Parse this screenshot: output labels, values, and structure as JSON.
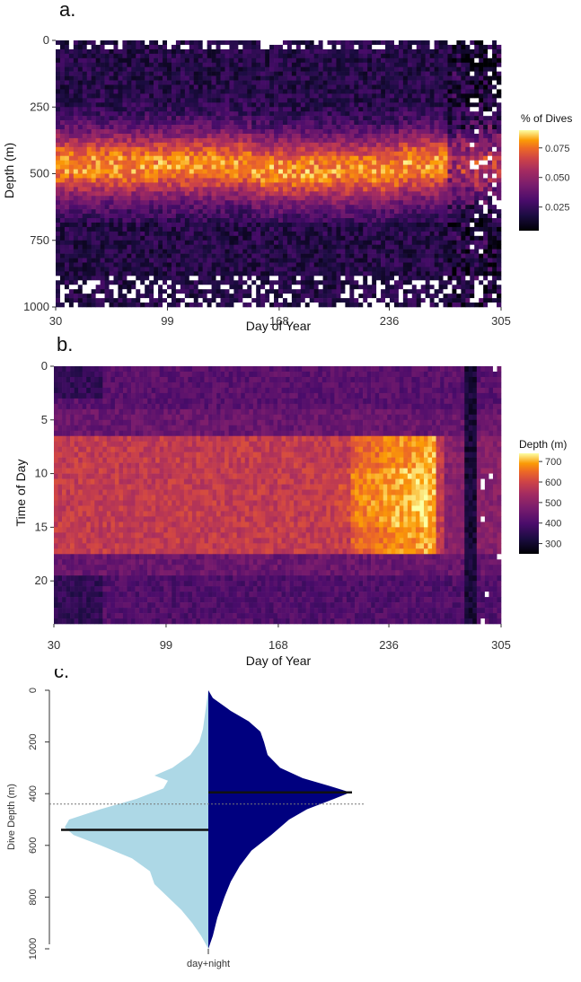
{
  "chart_data": [
    {
      "id": "a",
      "type": "heatmap",
      "panel_label": "a.",
      "xlabel": "Day of Year",
      "ylabel": "Depth (m)",
      "x_ticks": [
        30,
        99,
        168,
        236,
        305
      ],
      "y_ticks": [
        0,
        250,
        500,
        750,
        1000
      ],
      "xlim": [
        30,
        305
      ],
      "ylim": [
        1000,
        0
      ],
      "legend": {
        "title": "% of Dives",
        "ticks": [
          "0.075",
          "0.050",
          "0.025"
        ],
        "range": [
          0.005,
          0.09
        ],
        "placement": "right"
      },
      "description_values": {
        "peak_depth_band": [
          400,
          520
        ],
        "colorscale": "inferno"
      }
    },
    {
      "id": "b",
      "type": "heatmap",
      "panel_label": "b.",
      "xlabel": "Day of Year",
      "ylabel": "Time of Day",
      "x_ticks": [
        30,
        99,
        168,
        236,
        305
      ],
      "y_ticks": [
        0,
        5,
        10,
        15,
        20
      ],
      "xlim": [
        30,
        305
      ],
      "ylim": [
        24,
        0
      ],
      "legend": {
        "title": "Depth (m)",
        "ticks": [
          "700",
          "600",
          "500",
          "400",
          "300"
        ],
        "range": [
          250,
          740
        ],
        "placement": "right"
      },
      "description_values": {
        "deep_hours": [
          6,
          17
        ],
        "colorscale": "inferno"
      }
    },
    {
      "id": "c",
      "type": "violin",
      "panel_label": "c.",
      "ylabel": "Dive Depth (m)",
      "x_category": "day+night",
      "y_ticks": [
        "0",
        "200",
        "400",
        "600",
        "800",
        "1000"
      ],
      "ylim": [
        1000,
        0
      ],
      "series": [
        {
          "name": "",
          "side": "left",
          "color": "#add8e6",
          "median": 540
        },
        {
          "name": "",
          "side": "right",
          "color": "#00007f",
          "median": 395
        }
      ],
      "reference_line": 440
    }
  ]
}
